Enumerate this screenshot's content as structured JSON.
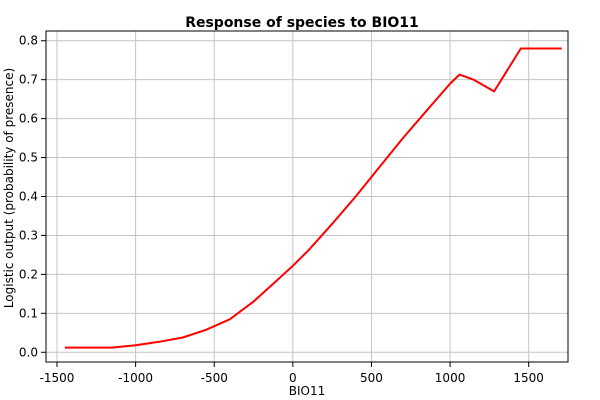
{
  "chart_data": {
    "type": "line",
    "title": "Response of species to BIO11",
    "xlabel": "BIO11",
    "ylabel": "Logistic output (probability of presence)",
    "xlim": [
      -1570,
      1750
    ],
    "ylim": [
      -0.025,
      0.825
    ],
    "xticks": [
      -1500,
      -1000,
      -500,
      0,
      500,
      1000,
      1500
    ],
    "xtick_labels": [
      "-1500",
      "-1000",
      "-500",
      "0",
      "500",
      "1000",
      "1500"
    ],
    "yticks": [
      0.0,
      0.1,
      0.2,
      0.3,
      0.4,
      0.5,
      0.6,
      0.7,
      0.8
    ],
    "ytick_labels": [
      "0.0",
      "0.1",
      "0.2",
      "0.3",
      "0.4",
      "0.5",
      "0.6",
      "0.7",
      "0.8"
    ],
    "grid": true,
    "series": [
      {
        "color": "#ff0000",
        "x": [
          -1450,
          -1300,
          -1150,
          -1000,
          -850,
          -700,
          -550,
          -400,
          -250,
          -100,
          0,
          100,
          250,
          400,
          550,
          700,
          850,
          1000,
          1060,
          1150,
          1280,
          1350,
          1450,
          1500,
          1600,
          1710
        ],
        "y": [
          0.012,
          0.012,
          0.012,
          0.018,
          0.027,
          0.038,
          0.058,
          0.085,
          0.13,
          0.185,
          0.222,
          0.262,
          0.33,
          0.4,
          0.475,
          0.55,
          0.62,
          0.69,
          0.713,
          0.7,
          0.67,
          0.715,
          0.78,
          0.78,
          0.78,
          0.78
        ]
      }
    ]
  }
}
